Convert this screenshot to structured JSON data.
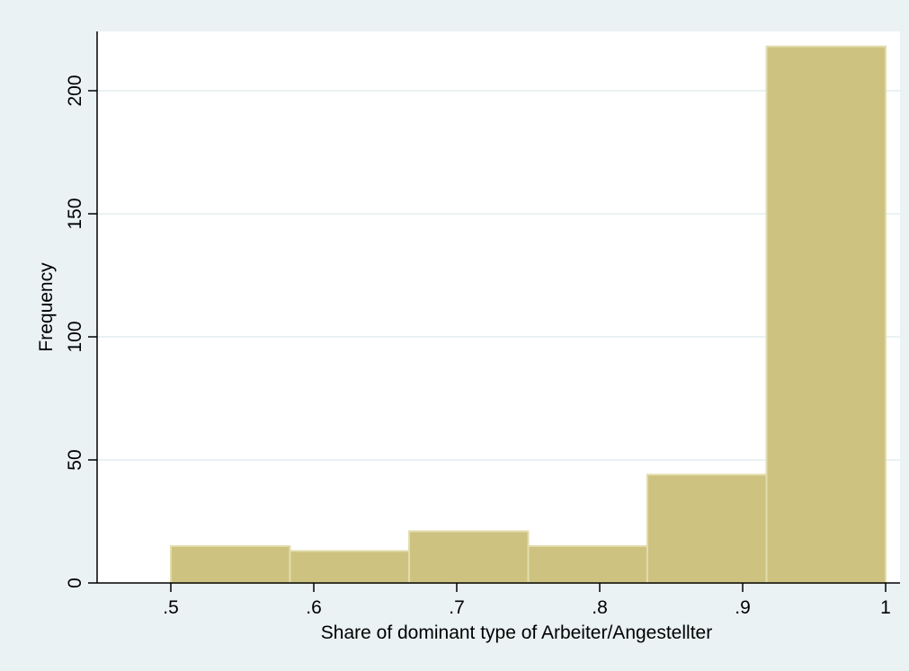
{
  "chart_data": {
    "type": "bar",
    "title": "",
    "xlabel": "Share of dominant type of Arbeiter/Angestellter",
    "ylabel": "Frequency",
    "xlim": [
      0.45,
      1.0
    ],
    "ylim": [
      0,
      225
    ],
    "bins": [
      {
        "x0": 0.5,
        "x1": 0.5833,
        "value": 15
      },
      {
        "x0": 0.5833,
        "x1": 0.6667,
        "value": 13
      },
      {
        "x0": 0.6667,
        "x1": 0.75,
        "value": 21
      },
      {
        "x0": 0.75,
        "x1": 0.8333,
        "value": 15
      },
      {
        "x0": 0.8333,
        "x1": 0.9167,
        "value": 44
      },
      {
        "x0": 0.9167,
        "x1": 1.0,
        "value": 218
      }
    ],
    "x_ticks": [
      {
        "value": 0.5,
        "label": ".5"
      },
      {
        "value": 0.6,
        "label": ".6"
      },
      {
        "value": 0.7,
        "label": ".7"
      },
      {
        "value": 0.8,
        "label": ".8"
      },
      {
        "value": 0.9,
        "label": ".9"
      },
      {
        "value": 1.0,
        "label": "1"
      }
    ],
    "y_ticks": [
      {
        "value": 0,
        "label": "0"
      },
      {
        "value": 50,
        "label": "50"
      },
      {
        "value": 100,
        "label": "100"
      },
      {
        "value": 150,
        "label": "150"
      },
      {
        "value": 200,
        "label": "200"
      }
    ],
    "grid": true,
    "colors": {
      "background": "#eaf2f3",
      "plot_background": "#ffffff",
      "bar_fill": "#cdc27f",
      "bar_edge": "#e3dcae",
      "gridline": "#eaf2f3",
      "axis": "#000000"
    }
  }
}
